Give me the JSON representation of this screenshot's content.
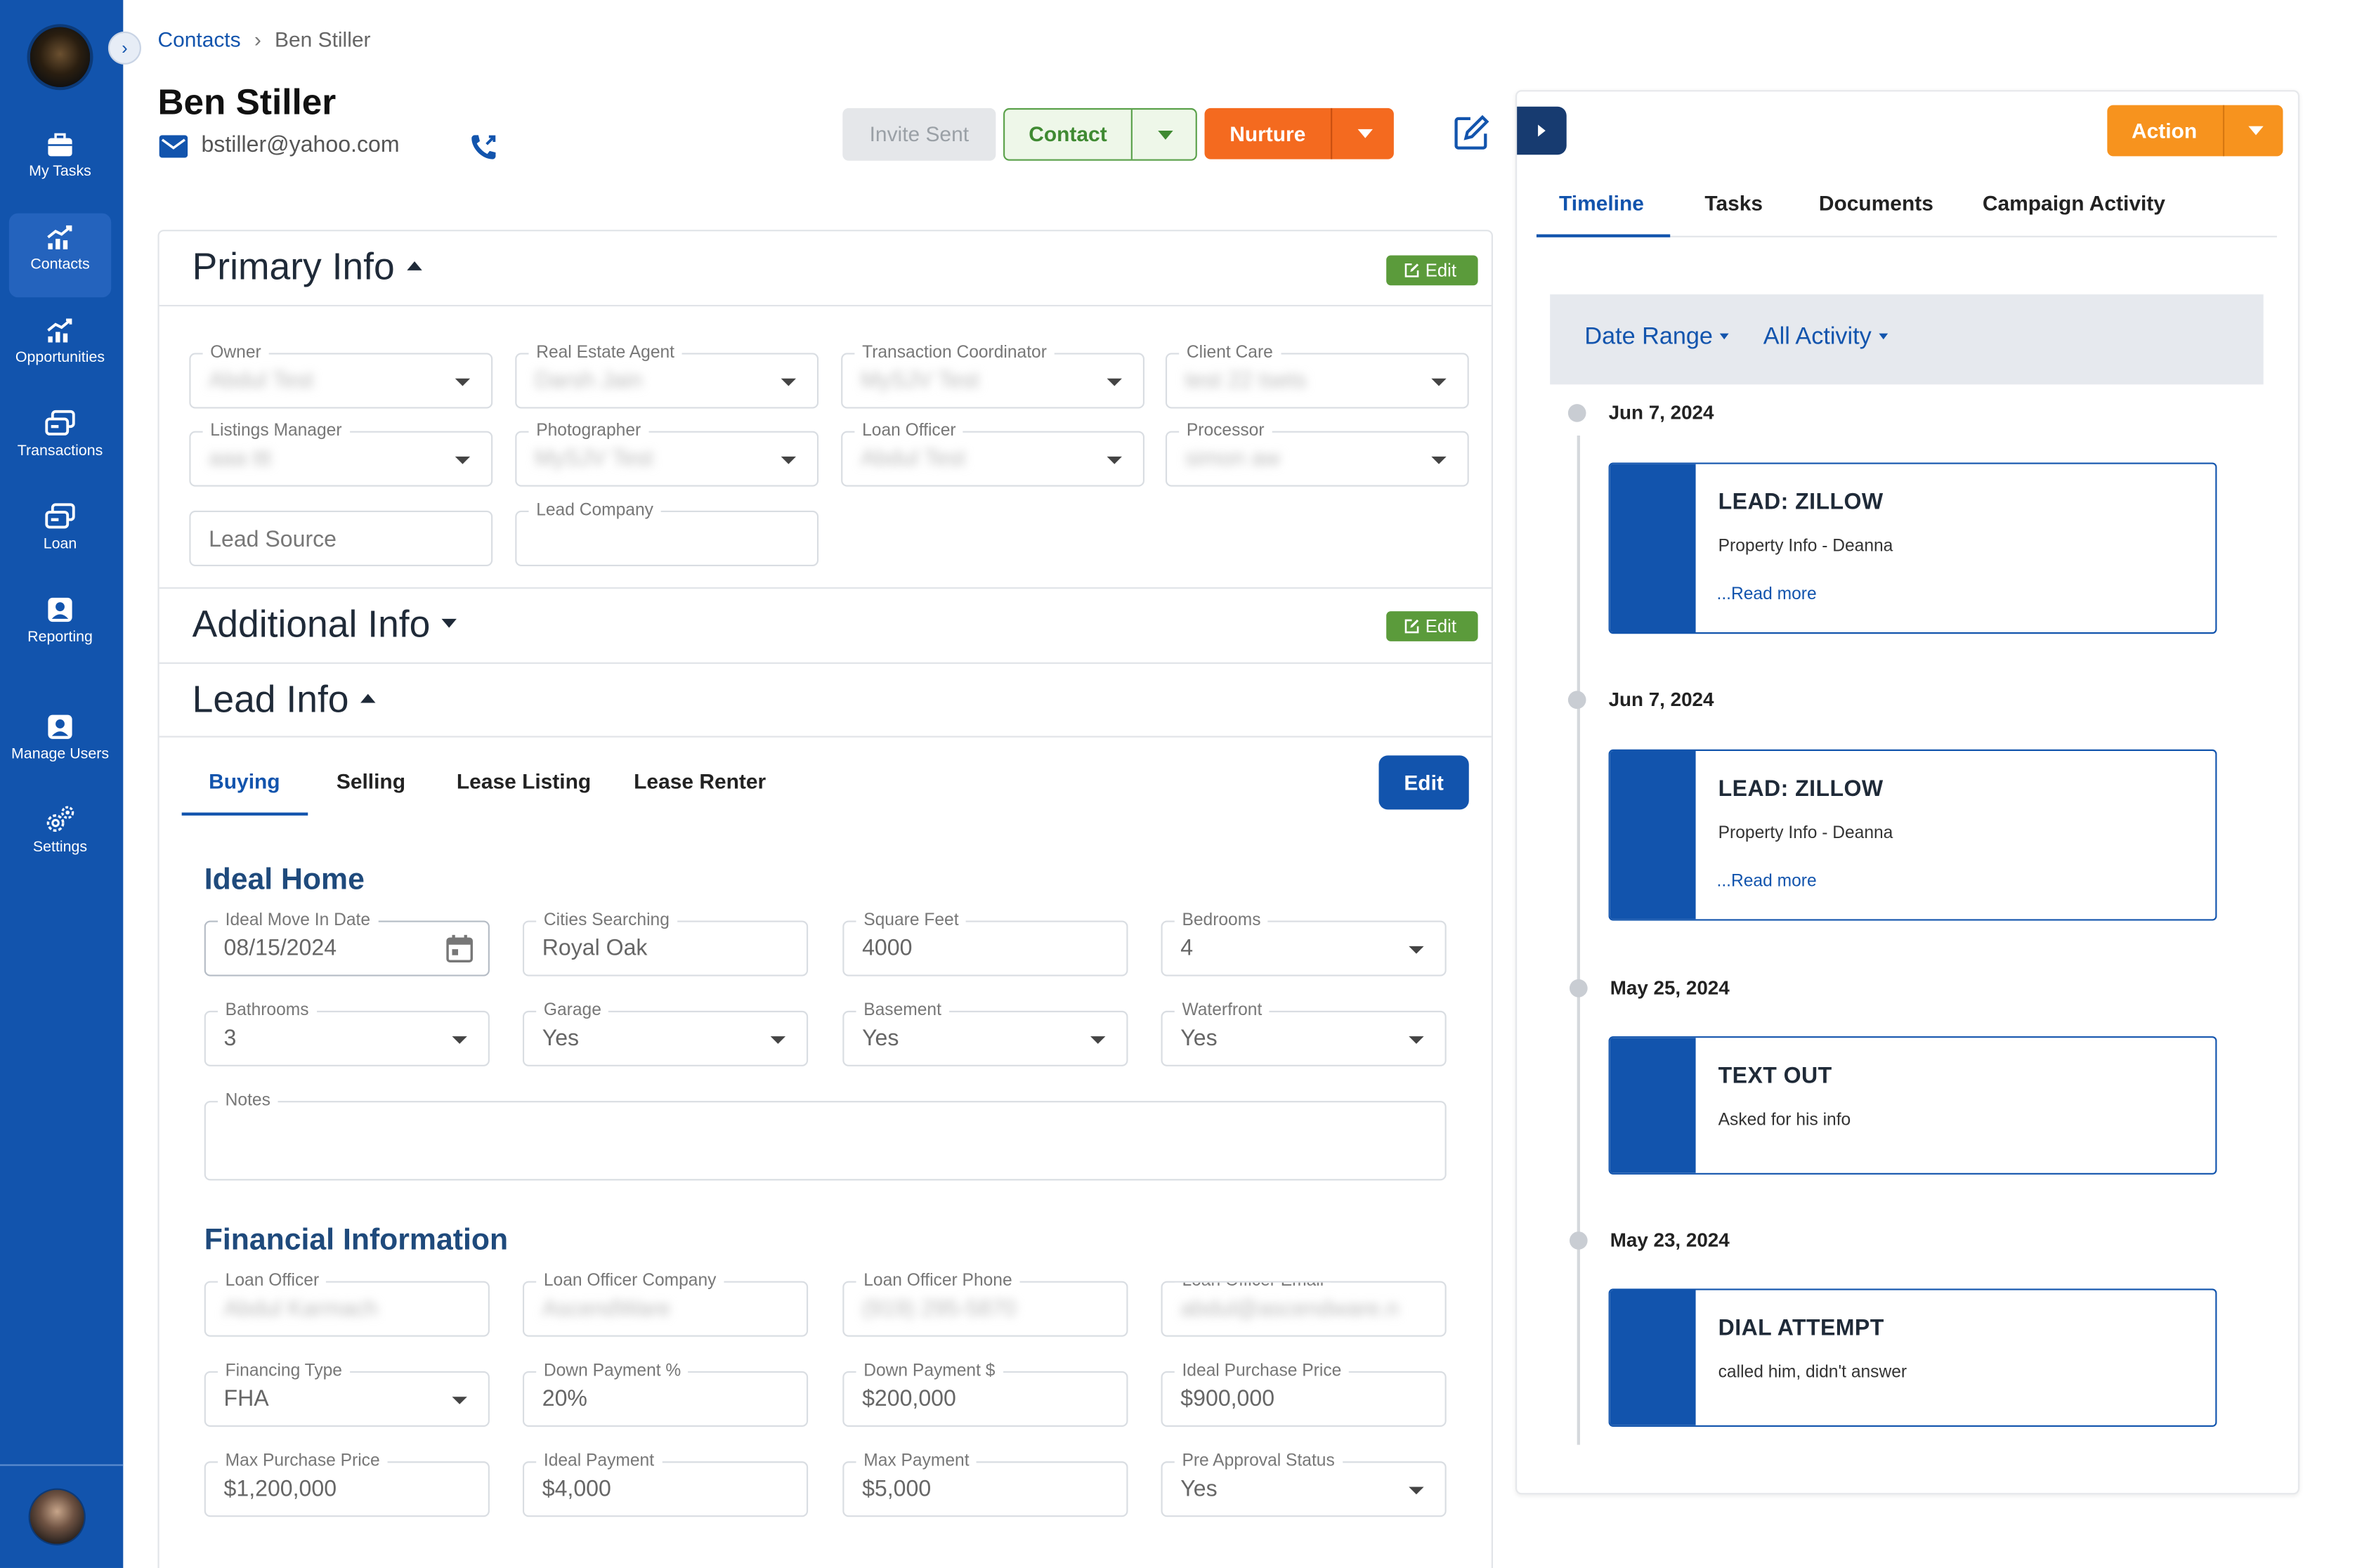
{
  "sidebar": {
    "items": [
      {
        "label": "My Tasks",
        "icon": "briefcase-icon"
      },
      {
        "label": "Contacts",
        "icon": "chart-up-icon"
      },
      {
        "label": "Opportunities",
        "icon": "chart-up-icon"
      },
      {
        "label": "Transactions",
        "icon": "cards-icon"
      },
      {
        "label": "Loan",
        "icon": "cards-icon"
      },
      {
        "label": "Reporting",
        "icon": "user-badge-icon"
      },
      {
        "label": "Manage Users",
        "icon": "user-badge-icon"
      },
      {
        "label": "Settings",
        "icon": "gears-icon"
      }
    ]
  },
  "breadcrumb": {
    "root": "Contacts",
    "current": "Ben Stiller"
  },
  "contact": {
    "name": "Ben Stiller",
    "email": "bstiller@yahoo.com"
  },
  "header_buttons": {
    "invite": "Invite Sent",
    "contact": "Contact",
    "nurture": "Nurture"
  },
  "primary_info": {
    "title": "Primary Info",
    "edit_label": "Edit",
    "fields": [
      {
        "label": "Owner",
        "value": "Abdul Test"
      },
      {
        "label": "Real Estate Agent",
        "value": "Darsh Jain"
      },
      {
        "label": "Transaction Coordinator",
        "value": "MySJV Test"
      },
      {
        "label": "Client Care",
        "value": "test 22 tsets"
      },
      {
        "label": "Listings Manager",
        "value": "aaa ttt"
      },
      {
        "label": "Photographer",
        "value": "MySJV Test"
      },
      {
        "label": "Loan Officer",
        "value": "Abdul Test"
      },
      {
        "label": "Processor",
        "value": "simon aw"
      }
    ],
    "lead_source_placeholder": "Lead Source",
    "lead_company_label": "Lead Company"
  },
  "additional_info": {
    "title": "Additional Info",
    "edit_label": "Edit"
  },
  "lead_info": {
    "title": "Lead Info",
    "tabs": [
      "Buying",
      "Selling",
      "Lease Listing",
      "Lease Renter"
    ],
    "edit_label": "Edit",
    "ideal_home": {
      "title": "Ideal Home",
      "move_in": {
        "label": "Ideal Move In Date",
        "value": "08/15/2024"
      },
      "cities": {
        "label": "Cities Searching",
        "value": "Royal Oak"
      },
      "sqft": {
        "label": "Square Feet",
        "value": "4000"
      },
      "bedrooms": {
        "label": "Bedrooms",
        "value": "4"
      },
      "bathrooms": {
        "label": "Bathrooms",
        "value": "3"
      },
      "garage": {
        "label": "Garage",
        "value": "Yes"
      },
      "basement": {
        "label": "Basement",
        "value": "Yes"
      },
      "waterfront": {
        "label": "Waterfront",
        "value": "Yes"
      },
      "notes": {
        "label": "Notes",
        "value": ""
      }
    },
    "financial": {
      "title": "Financial Information",
      "loan_officer": {
        "label": "Loan Officer",
        "value": "Abdul Karmach"
      },
      "lo_company": {
        "label": "Loan Officer Company",
        "value": "AscendWare"
      },
      "lo_phone": {
        "label": "Loan Officer Phone",
        "value": "(919) 295-5870"
      },
      "lo_email": {
        "label": "Loan Officer Email",
        "value": "abdul@ascendware.n"
      },
      "financing_type": {
        "label": "Financing Type",
        "value": "FHA"
      },
      "down_pct": {
        "label": "Down Payment %",
        "value": "20%"
      },
      "down_amt": {
        "label": "Down Payment $",
        "value": "$200,000"
      },
      "ideal_price": {
        "label": "Ideal Purchase Price",
        "value": "$900,000"
      },
      "max_price": {
        "label": "Max Purchase Price",
        "value": "$1,200,000"
      },
      "ideal_payment": {
        "label": "Ideal Payment",
        "value": "$4,000"
      },
      "max_payment": {
        "label": "Max Payment",
        "value": "$5,000"
      },
      "pre_approval": {
        "label": "Pre Approval Status",
        "value": "Yes"
      }
    }
  },
  "right_panel": {
    "action_label": "Action",
    "tabs": [
      "Timeline",
      "Tasks",
      "Documents",
      "Campaign Activity"
    ],
    "filters": {
      "date_range": "Date Range",
      "activity": "All Activity"
    },
    "timeline": [
      {
        "date": "Jun 7, 2024",
        "title": "LEAD: ZILLOW",
        "body": "Property Info - Deanna",
        "more": "...Read more"
      },
      {
        "date": "Jun 7, 2024",
        "title": "LEAD: ZILLOW",
        "body": "Property Info - Deanna",
        "more": "...Read more"
      },
      {
        "date": "May 25, 2024",
        "title": "TEXT OUT",
        "body": "Asked for his info"
      },
      {
        "date": "May 23, 2024",
        "title": "DIAL ATTEMPT",
        "body": "called him, didn't answer"
      }
    ]
  },
  "colors": {
    "primary": "#1254ad",
    "orange": "#f46a1f",
    "action_orange": "#f7931e",
    "green": "#5b9b3b"
  }
}
